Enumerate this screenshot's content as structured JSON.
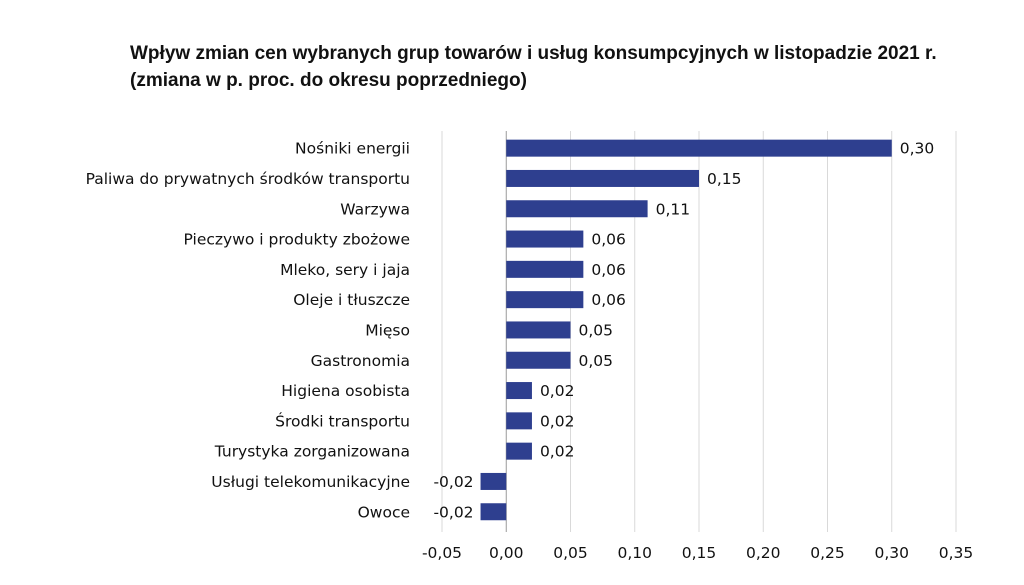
{
  "chart_data": {
    "type": "bar",
    "orientation": "horizontal",
    "title": "Wpływ zmian cen wybranych grup towarów i usług konsumpcyjnych w listopadzie 2021 r.",
    "subtitle": "(zmiana w p. proc. do okresu poprzedniego)",
    "categories": [
      "Nośniki energii",
      "Paliwa do prywatnych środków transportu",
      "Warzywa",
      "Pieczywo i produkty zbożowe",
      "Mleko, sery i jaja",
      "Oleje i tłuszcze",
      "Mięso",
      "Gastronomia",
      "Higiena osobista",
      "Środki transportu",
      "Turystyka zorganizowana",
      "Usługi telekomunikacyjne",
      "Owoce"
    ],
    "values": [
      0.3,
      0.15,
      0.11,
      0.06,
      0.06,
      0.06,
      0.05,
      0.05,
      0.02,
      0.02,
      0.02,
      -0.02,
      -0.02
    ],
    "value_labels": [
      "0,30",
      "0,15",
      "0,11",
      "0,06",
      "0,06",
      "0,06",
      "0,05",
      "0,05",
      "0,02",
      "0,02",
      "0,02",
      "-0,02",
      "-0,02"
    ],
    "xlim": [
      -0.05,
      0.35
    ],
    "x_ticks": [
      -0.05,
      0.0,
      0.05,
      0.1,
      0.15,
      0.2,
      0.25,
      0.3,
      0.35
    ],
    "x_tick_labels": [
      "-0,05",
      "0,00",
      "0,05",
      "0,10",
      "0,15",
      "0,20",
      "0,25",
      "0,30",
      "0,35"
    ],
    "xlabel": "",
    "ylabel": "",
    "grid": "vertical",
    "legend": "none",
    "bar_color": "#2e3f8f",
    "grid_color": "#d9d9d9"
  }
}
